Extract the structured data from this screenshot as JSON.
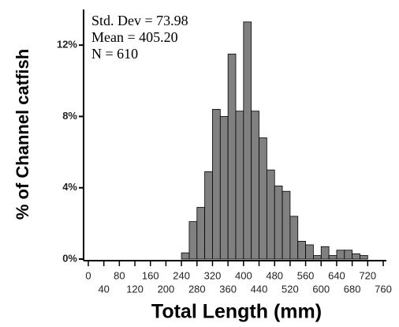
{
  "chart_data": {
    "type": "histogram",
    "xlabel": "Total Length (mm)",
    "ylabel": "% of Channel catfish",
    "annotations": [
      "Std.  Dev = 73.98",
      "Mean = 405.20",
      "N = 610"
    ],
    "bins": [
      240,
      260,
      280,
      300,
      320,
      340,
      360,
      380,
      400,
      420,
      440,
      460,
      480,
      500,
      520,
      540,
      560,
      580,
      600,
      620,
      640,
      660,
      680,
      700,
      720
    ],
    "values": [
      0.35,
      2.1,
      2.9,
      4.9,
      8.4,
      8.0,
      11.5,
      8.3,
      13.3,
      8.3,
      6.8,
      5.0,
      4.1,
      3.8,
      2.4,
      1.0,
      0.8,
      0.2,
      0.7,
      0.2,
      0.5,
      0.5,
      0.3,
      0.2
    ],
    "color": "#808080",
    "xlim": [
      0,
      760
    ],
    "xticks": [
      0,
      40,
      80,
      120,
      160,
      200,
      240,
      280,
      320,
      360,
      400,
      440,
      480,
      520,
      560,
      600,
      640,
      680,
      720,
      760
    ],
    "ylim": [
      0,
      14
    ],
    "yticks": [
      {
        "value": 0,
        "label": "0%"
      },
      {
        "value": 4,
        "label": "4%"
      },
      {
        "value": 8,
        "label": "8%"
      },
      {
        "value": 12,
        "label": "12%"
      }
    ]
  }
}
